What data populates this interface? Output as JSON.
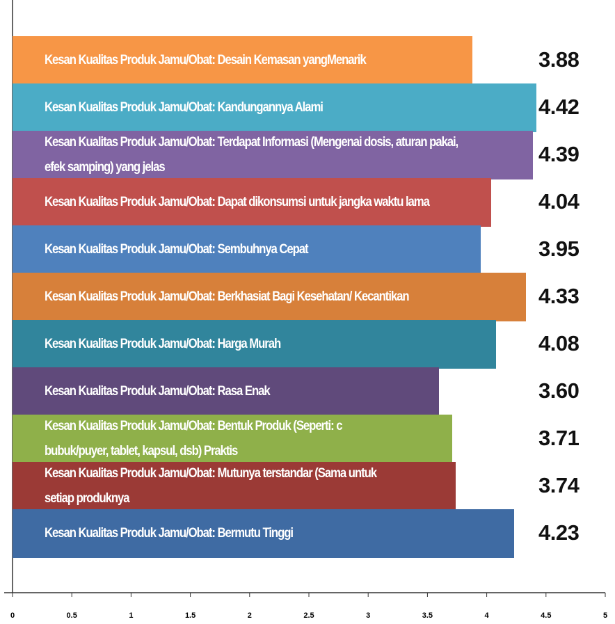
{
  "chart_data": {
    "type": "barh",
    "categories": [
      "Kesan Kualitas Produk Jamu/Obat: Desain Kemasan yangMenarik",
      "Kesan Kualitas Produk Jamu/Obat: Kandungannya Alami",
      "Kesan Kualitas Produk Jamu/Obat: Terdapat Informasi (Mengenai dosis, aturan pakai, efek samping) yang jelas",
      "Kesan Kualitas Produk Jamu/Obat: Dapat dikonsumsi untuk jangka waktu lama",
      "Kesan Kualitas Produk Jamu/Obat: Sembuhnya Cepat",
      "Kesan Kualitas Produk Jamu/Obat: Berkhasiat Bagi Kesehatan/ Kecantikan",
      "Kesan Kualitas Produk Jamu/Obat: Harga Murah",
      "Kesan Kualitas Produk Jamu/Obat: Rasa Enak",
      "Kesan Kualitas Produk Jamu/Obat: Bentuk Produk (Seperti: c bubuk/puyer, tablet, kapsul, dsb) Praktis",
      "Kesan Kualitas Produk Jamu/Obat: Mutunya terstandar (Sama untuk setiap produknya",
      "Kesan Kualitas Produk Jamu/Obat: Bermutu Tinggi"
    ],
    "values": [
      3.88,
      4.42,
      4.39,
      4.04,
      3.95,
      4.33,
      4.08,
      3.6,
      3.71,
      3.74,
      4.23
    ],
    "value_labels": [
      "3.88",
      "4.42",
      "4.39",
      "4.04",
      "3.95",
      "4.33",
      "4.08",
      "3.60",
      "3.71",
      "3.74",
      "4.23"
    ],
    "colors": [
      "#f79646",
      "#4bacc6",
      "#8064a2",
      "#c0504d",
      "#4f81bd",
      "#d7803a",
      "#31859c",
      "#604a7b",
      "#8fb04a",
      "#9b3a36",
      "#3f6ba3"
    ],
    "xlim": [
      0,
      5
    ],
    "xticks": [
      0,
      0.5,
      1,
      1.5,
      2,
      2.5,
      3,
      3.5,
      4,
      4.5,
      5
    ]
  }
}
